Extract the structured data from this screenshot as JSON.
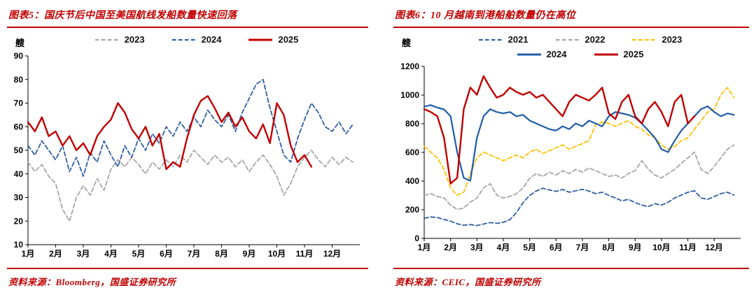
{
  "style": {
    "accent_red": "#c00000",
    "axis_color": "#000000"
  },
  "chart_data": [
    {
      "type": "line",
      "title": "图表5：国庆节后中国至美国航线发船数量快速回落",
      "unit": "艘",
      "ylabel": "艘",
      "source": "资料来源：Bloomberg，国盛证券研究所",
      "xlim": [
        1,
        13
      ],
      "ylim": [
        10,
        90
      ],
      "yticks": [
        10,
        20,
        30,
        40,
        50,
        60,
        70,
        80,
        90
      ],
      "x_tick_positions": [
        1,
        2,
        3,
        4,
        5,
        6,
        7,
        8,
        9,
        10,
        11,
        12
      ],
      "x_tick_labels": [
        "1月",
        "2月",
        "3月",
        "4月",
        "5月",
        "6月",
        "7月",
        "8月",
        "9月",
        "10月",
        "11月",
        "12月"
      ],
      "grid": false,
      "legend_position": "top",
      "margin_left": 30,
      "legend_rows": [
        [
          "2023",
          "2024",
          "2025"
        ]
      ],
      "series": [
        {
          "name": "2023",
          "color": "#a6a6a6",
          "dash": "6 3.5",
          "width": 1.8,
          "x_start": 1,
          "x_step": 0.25,
          "values": [
            45,
            41,
            44,
            39,
            36,
            25,
            20,
            30,
            35,
            31,
            38,
            33,
            42,
            46,
            43,
            47,
            44,
            40,
            45,
            42,
            46,
            43,
            48,
            45,
            50,
            47,
            44,
            48,
            45,
            47,
            43,
            46,
            41,
            45,
            48,
            44,
            39,
            31,
            36,
            43,
            47,
            50,
            46,
            43,
            47,
            44,
            47,
            45
          ]
        },
        {
          "name": "2024",
          "color": "#2e5fa3",
          "dash": "6 3.5",
          "width": 1.8,
          "x_start": 1,
          "x_step": 0.25,
          "values": [
            52,
            48,
            54,
            50,
            46,
            52,
            41,
            47,
            39,
            49,
            45,
            54,
            48,
            43,
            52,
            47,
            55,
            50,
            57,
            53,
            60,
            56,
            62,
            58,
            64,
            60,
            67,
            63,
            60,
            65,
            58,
            66,
            72,
            78,
            80,
            68,
            58,
            48,
            45,
            55,
            63,
            70,
            66,
            60,
            58,
            62,
            57,
            61
          ]
        },
        {
          "name": "2025",
          "color": "#c00000",
          "dash": null,
          "width": 2.4,
          "x_start": 1,
          "x_step": 0.25,
          "values": [
            62,
            58,
            64,
            56,
            58,
            52,
            56,
            50,
            53,
            48,
            56,
            60,
            63,
            70,
            66,
            59,
            55,
            60,
            52,
            57,
            42,
            45,
            43,
            55,
            65,
            71,
            73,
            68,
            62,
            66,
            60,
            64,
            58,
            55,
            61,
            53,
            70,
            65,
            52,
            45,
            48,
            43
          ]
        }
      ]
    },
    {
      "type": "line",
      "title": "图表6：10 月越南到港船舶数量仍在高位",
      "unit": "艘",
      "ylabel": "艘",
      "source": "资料来源：CEIC，国盛证券研究所",
      "xlim": [
        1,
        13
      ],
      "ylim": [
        0,
        1200
      ],
      "yticks": [
        0,
        200,
        400,
        600,
        800,
        1000,
        1200
      ],
      "x_tick_positions": [
        1,
        2,
        3,
        4,
        5,
        6,
        7,
        8,
        9,
        10,
        11,
        12
      ],
      "x_tick_labels": [
        "1月",
        "2月",
        "3月",
        "4月",
        "5月",
        "6月",
        "7月",
        "8月",
        "9月",
        "10月",
        "11月",
        "12月"
      ],
      "grid": false,
      "legend_position": "top",
      "margin_left": 44,
      "legend_rows": [
        [
          "2021",
          "2022",
          "2023"
        ],
        [
          "2024",
          "2025"
        ]
      ],
      "series": [
        {
          "name": "2021",
          "color": "#2e5fa3",
          "dash": "6 3.5",
          "width": 1.8,
          "x_start": 1,
          "x_step": 0.25,
          "values": [
            140,
            150,
            145,
            132,
            120,
            102,
            92,
            96,
            90,
            100,
            110,
            105,
            112,
            130,
            180,
            250,
            300,
            330,
            350,
            338,
            328,
            342,
            322,
            332,
            342,
            330,
            312,
            322,
            300,
            282,
            262,
            272,
            250,
            232,
            222,
            242,
            232,
            252,
            282,
            302,
            322,
            332,
            282,
            272,
            292,
            312,
            322,
            302
          ]
        },
        {
          "name": "2022",
          "color": "#a6a6a6",
          "dash": "6 3.5",
          "width": 1.8,
          "x_start": 1,
          "x_step": 0.25,
          "values": [
            300,
            312,
            292,
            282,
            232,
            202,
            212,
            252,
            282,
            352,
            382,
            302,
            282,
            292,
            312,
            352,
            420,
            452,
            432,
            462,
            442,
            472,
            452,
            482,
            462,
            492,
            472,
            452,
            432,
            442,
            422,
            452,
            472,
            542,
            482,
            442,
            422,
            452,
            482,
            522,
            562,
            602,
            482,
            452,
            502,
            562,
            622,
            652
          ]
        },
        {
          "name": "2023",
          "color": "#ffc000",
          "dash": "6 3.5",
          "width": 1.8,
          "x_start": 1,
          "x_step": 0.25,
          "values": [
            642,
            602,
            562,
            482,
            352,
            302,
            322,
            452,
            562,
            602,
            582,
            562,
            542,
            562,
            582,
            562,
            602,
            622,
            592,
            612,
            632,
            652,
            622,
            642,
            662,
            682,
            792,
            812,
            802,
            782,
            802,
            822,
            782,
            762,
            722,
            702,
            652,
            622,
            642,
            682,
            702,
            762,
            822,
            882,
            902,
            1002,
            1052,
            982
          ]
        },
        {
          "name": "2024",
          "color": "#1f5ca8",
          "dash": null,
          "width": 2.2,
          "x_start": 1,
          "x_step": 0.25,
          "values": [
            920,
            930,
            912,
            900,
            852,
            602,
            422,
            402,
            702,
            852,
            902,
            882,
            872,
            882,
            852,
            862,
            822,
            802,
            782,
            762,
            752,
            782,
            762,
            802,
            782,
            822,
            802,
            782,
            852,
            882,
            872,
            862,
            842,
            802,
            752,
            702,
            622,
            602,
            682,
            752,
            802,
            852,
            902,
            922,
            882,
            852,
            872,
            862
          ]
        },
        {
          "name": "2025",
          "color": "#c00000",
          "dash": null,
          "width": 2.4,
          "x_start": 1,
          "x_step": 0.25,
          "values": [
            902,
            882,
            852,
            702,
            382,
            422,
            902,
            1052,
            1002,
            1132,
            1052,
            982,
            1002,
            1052,
            1022,
            1002,
            1022,
            982,
            1002,
            952,
            902,
            852,
            952,
            1002,
            982,
            962,
            1002,
            1052,
            872,
            832,
            952,
            1002,
            852,
            802,
            902,
            952,
            882,
            782,
            952,
            1002,
            802,
            852
          ]
        }
      ]
    }
  ]
}
